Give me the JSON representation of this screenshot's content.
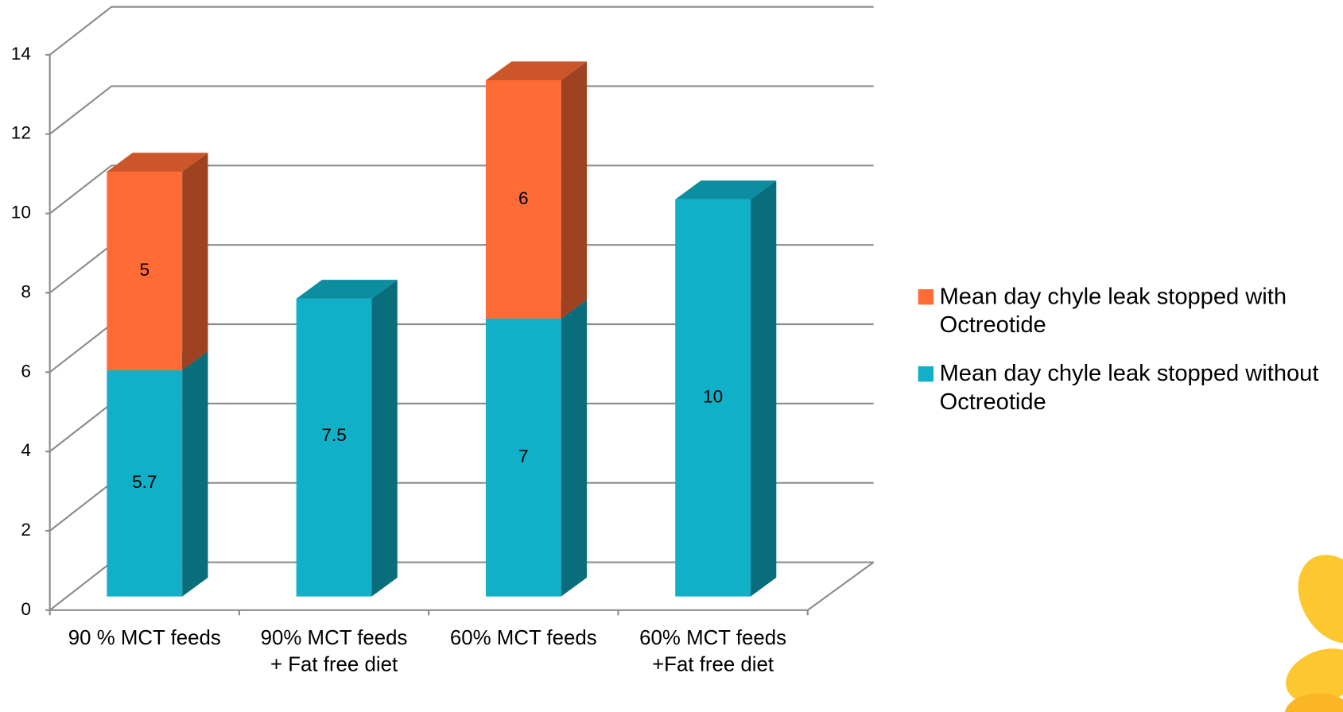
{
  "chart_data": {
    "type": "bar3d_stacked",
    "categories": [
      "90 % MCT feeds",
      "90% MCT feeds + Fat free diet",
      "60% MCT feeds",
      "60% MCT feeds +Fat free diet"
    ],
    "series": [
      {
        "name": "Mean day  chyle leak stopped without Octreotide",
        "color": "#0fb0c8",
        "values": [
          5.7,
          7.5,
          7,
          10
        ]
      },
      {
        "name": "Mean day  chyle leak stopped with Octreotide",
        "color": "#ff6b35",
        "values": [
          5,
          null,
          6,
          null
        ]
      }
    ],
    "ylim": [
      0,
      14
    ],
    "yticks": [
      0,
      2,
      4,
      6,
      8,
      10,
      12,
      14
    ],
    "grid": true
  }
}
